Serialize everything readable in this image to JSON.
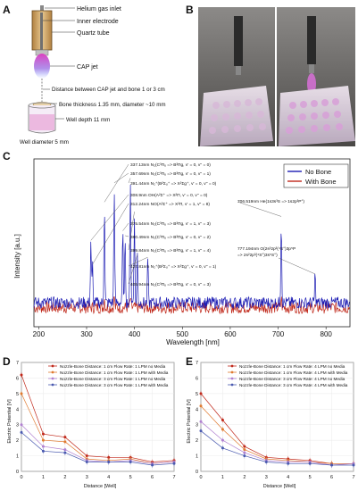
{
  "panels": {
    "a": {
      "letter": "A",
      "labels": {
        "helium_inlet": "Helium gas inlet",
        "inner_electrode": "Inner electrode",
        "quartz_tube": "Quartz tube",
        "cap_jet": "CAP jet",
        "distance": "Distance between CAP jet and bone 1 or 3 cm",
        "bone_thickness": "Bone thickness 1.35 mm, diameter ~10 mm",
        "well_depth": "Well depth 11 mm",
        "well_diameter": "Well diameter 5 mm"
      }
    },
    "b": {
      "letter": "B"
    },
    "c": {
      "letter": "C",
      "peak_labels": [
        "337.13nm N₂(C³Πᵤ => B³Πg, v' = 0, v'' = 0)",
        "357.69nm N₂(C³Πᵤ => B³Πg, v' = 0, v'' = 1)",
        "391.44nm N₂⁺(B²Σᵤ⁺ => X²Σg⁺, v' = 0, v'' = 0)",
        "308.9nm OH(A²Σ⁺ => X²Π, v' = 0, v'' = 0)",
        "312.24nm NO(A²Σ⁺ => X²Π, v' = 1, v'' = 8)",
        "375.54nm N₂(C³Πᵤ => B³Πg, v' = 1, v'' = 3)",
        "380.49nm N₂(C³Πᵤ => B³Πg, v' = 0, v'' = 2)",
        "399.84nm N₂(C³Πᵤ => B³Πg, v' = 1, v'' = 4)",
        "427.81nm N₂⁺(B²Σᵤ⁺ => X²Σg⁺, v' = 0, v'' = 1)",
        "405.94nm N₂(C³Πᵤ => B³Πg, v' = 0, v'' = 3)"
      ],
      "he_label_1": "706.519nm He(1s3s³S => 1s2p³P°)",
      "he_label_2a": "777.194nm O(2s²2p³(⁴S°)3p⁵P",
      "he_label_2b": "=> 2s²2p³(⁴S°)3s⁵S°)"
    },
    "d": {
      "letter": "D"
    },
    "e": {
      "letter": "E"
    }
  },
  "chart_data": [
    {
      "id": "C",
      "type": "line",
      "xlabel": "Wavelength [nm]",
      "ylabel": "Intensity [a.u.]",
      "xlim": [
        190,
        850
      ],
      "x_ticks": [
        200,
        300,
        400,
        500,
        600,
        700,
        800
      ],
      "legend": "top-right",
      "series": [
        {
          "name": "No Bone",
          "color": "#1c1cb4",
          "baseline": 10,
          "peaks": [
            {
              "x": 308.9,
              "y": 36
            },
            {
              "x": 312.24,
              "y": 26
            },
            {
              "x": 337.13,
              "y": 52
            },
            {
              "x": 357.69,
              "y": 60
            },
            {
              "x": 375.54,
              "y": 40
            },
            {
              "x": 380.49,
              "y": 38
            },
            {
              "x": 391.44,
              "y": 62
            },
            {
              "x": 399.84,
              "y": 48
            },
            {
              "x": 405.94,
              "y": 30
            },
            {
              "x": 427.81,
              "y": 29
            },
            {
              "x": 706.519,
              "y": 46
            },
            {
              "x": 777.194,
              "y": 22
            }
          ]
        },
        {
          "name": "With Bone",
          "color": "#c0281a",
          "baseline": 8,
          "peaks": [
            {
              "x": 337.13,
              "y": 12
            },
            {
              "x": 357.69,
              "y": 13
            },
            {
              "x": 391.44,
              "y": 12
            },
            {
              "x": 706.519,
              "y": 12
            }
          ]
        }
      ]
    },
    {
      "id": "D",
      "type": "line",
      "xlabel": "Distance [Well]",
      "ylabel": "Electric Potential [V]",
      "xlim": [
        0,
        7
      ],
      "ylim": [
        0,
        7
      ],
      "x_ticks": [
        0,
        1,
        2,
        3,
        4,
        5,
        6,
        7
      ],
      "y_ticks": [
        0,
        1,
        2,
        3,
        4,
        5,
        6,
        7
      ],
      "legend": "top-right",
      "series": [
        {
          "name": "Nozzle-Bone Distance: 1 cm Flow Rate: 1 LPM no Media",
          "color": "#c0281a",
          "values": [
            6.2,
            2.4,
            2.2,
            1.0,
            0.9,
            0.9,
            0.6,
            0.7
          ]
        },
        {
          "name": "Nozzle-Bone Distance: 1 cm Flow Rate: 1 LPM with Media",
          "color": "#e07a30",
          "values": [
            5.0,
            2.0,
            1.9,
            0.8,
            0.7,
            0.8,
            0.5,
            0.6
          ]
        },
        {
          "name": "Nozzle-Bone Distance: 3 cm Flow Rate: 1 LPM no Media",
          "color": "#b080d0",
          "values": [
            3.0,
            1.6,
            1.4,
            0.7,
            0.6,
            0.7,
            0.5,
            0.6
          ]
        },
        {
          "name": "Nozzle-Bone Distance: 3 cm Flow Rate: 1 LPM with Media",
          "color": "#4a5ab0",
          "values": [
            2.5,
            1.3,
            1.2,
            0.6,
            0.6,
            0.6,
            0.4,
            0.5
          ]
        }
      ]
    },
    {
      "id": "E",
      "type": "line",
      "xlabel": "Distance [Well]",
      "ylabel": "Electric Potential [V]",
      "xlim": [
        0,
        7
      ],
      "ylim": [
        0,
        7
      ],
      "x_ticks": [
        0,
        1,
        2,
        3,
        4,
        5,
        6,
        7
      ],
      "y_ticks": [
        0,
        1,
        2,
        3,
        4,
        5,
        6,
        7
      ],
      "legend": "top-right",
      "series": [
        {
          "name": "Nozzle-Bone Distance: 1 cm Flow Rate: 4 LPM no Media",
          "color": "#c0281a",
          "values": [
            5.0,
            3.3,
            1.6,
            0.9,
            0.8,
            0.7,
            0.5,
            0.5
          ]
        },
        {
          "name": "Nozzle-Bone Distance: 1 cm Flow Rate: 4 LPM with Media",
          "color": "#e07a30",
          "values": [
            4.2,
            2.7,
            1.4,
            0.8,
            0.7,
            0.6,
            0.5,
            0.5
          ]
        },
        {
          "name": "Nozzle-Bone Distance: 3 cm Flow Rate: 4 LPM no Media",
          "color": "#b080d0",
          "values": [
            3.2,
            2.0,
            1.2,
            0.7,
            0.6,
            0.6,
            0.4,
            0.5
          ]
        },
        {
          "name": "Nozzle-Bone Distance: 3 cm Flow Rate: 4 LPM with Media",
          "color": "#4a5ab0",
          "values": [
            2.6,
            1.5,
            1.0,
            0.6,
            0.5,
            0.5,
            0.4,
            0.4
          ]
        }
      ]
    }
  ]
}
